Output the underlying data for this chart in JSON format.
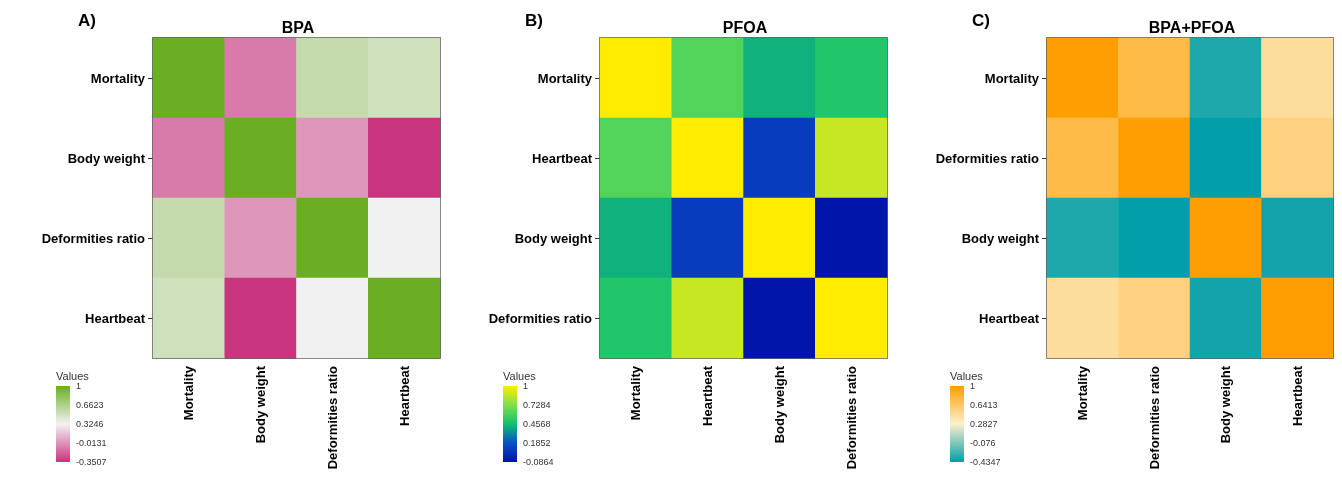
{
  "chart_data": [
    {
      "type": "heatmap",
      "title": "BPA",
      "annotations": [
        "A)"
      ],
      "clabel": "Values",
      "categories": [
        "Mortality",
        "Body weight",
        "Deformities ratio",
        "Heartbeat"
      ],
      "y_categories": [
        "Mortality",
        "Body weight",
        "Deformities ratio",
        "Heartbeat"
      ],
      "cells": [
        [
          1,
          -0.1,
          0.55,
          0.5
        ],
        [
          -0.1,
          1,
          0.0,
          -0.35
        ],
        [
          0.55,
          0.0,
          1,
          0.32
        ],
        [
          0.5,
          -0.35,
          0.32,
          1
        ]
      ],
      "clim": [
        -0.3507,
        1
      ],
      "cticks": [
        -0.3507,
        -0.0131,
        0.3246,
        0.6623,
        1
      ],
      "colors": [
        "#c9347f",
        "#f2f2f2",
        "#6aae22"
      ]
    },
    {
      "type": "heatmap",
      "title": "PFOA",
      "annotations": [
        "B)"
      ],
      "clabel": "Values",
      "categories": [
        "Mortality",
        "Heartbeat",
        "Body weight",
        "Deformities ratio"
      ],
      "y_categories": [
        "Mortality",
        "Heartbeat",
        "Body weight",
        "Deformities ratio"
      ],
      "cells": [
        [
          1,
          0.62,
          0.42,
          0.5
        ],
        [
          0.62,
          1,
          0.1,
          0.88
        ],
        [
          0.42,
          0.1,
          1,
          -0.08
        ],
        [
          0.5,
          0.88,
          -0.08,
          1
        ]
      ],
      "clim": [
        -0.0864,
        1
      ],
      "cticks": [
        -0.0864,
        0.1852,
        0.4568,
        0.7284,
        1
      ],
      "colors": [
        "#0014a8",
        "#0a4fc8",
        "#10c070",
        "#7ee04a",
        "#ffec00"
      ]
    },
    {
      "type": "heatmap",
      "title": "BPA+PFOA",
      "annotations": [
        "C)"
      ],
      "clabel": "Values",
      "categories": [
        "Mortality",
        "Deformities ratio",
        "Body weight",
        "Heartbeat"
      ],
      "y_categories": [
        "Mortality",
        "Deformities ratio",
        "Body weight",
        "Heartbeat"
      ],
      "cells": [
        [
          1,
          0.75,
          -0.35,
          0.45
        ],
        [
          0.75,
          1,
          -0.43,
          0.55
        ],
        [
          -0.35,
          -0.43,
          1,
          -0.38
        ],
        [
          0.45,
          0.55,
          -0.38,
          1
        ]
      ],
      "clim": [
        -0.4347,
        1
      ],
      "cticks": [
        -0.4347,
        -0.076,
        0.2827,
        0.6413,
        1
      ],
      "colors": [
        "#009ea8",
        "#fdf0cc",
        "#ff9e00"
      ]
    }
  ]
}
